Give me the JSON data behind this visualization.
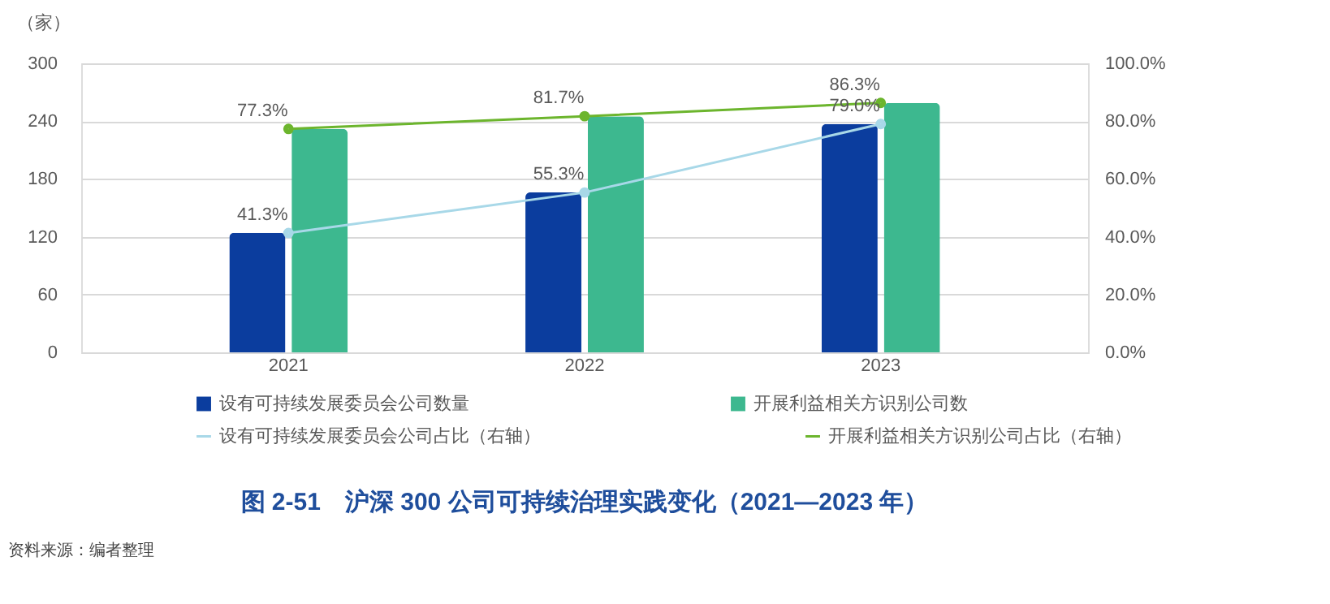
{
  "chart_data": {
    "type": "bar",
    "categories": [
      "2021",
      "2022",
      "2023"
    ],
    "ylabel": "（家）",
    "series": [
      {
        "name": "设有可持续发展委员会公司数量",
        "color": "#0b3d9e",
        "values": [
          124,
          166,
          237
        ]
      },
      {
        "name": "开展利益相关方识别公司数",
        "color": "#3db88f",
        "values": [
          232,
          245,
          259
        ]
      },
      {
        "name": "设有可持续发展委员会公司占比（右轴）",
        "type": "line",
        "axis": "y2",
        "color": "#a8d8e8",
        "values": [
          41.3,
          55.3,
          79.0
        ],
        "value_labels": [
          "41.3%",
          "55.3%",
          "79.0%"
        ]
      },
      {
        "name": "开展利益相关方识别公司占比（右轴）",
        "type": "line",
        "axis": "y2",
        "color": "#6cb52d",
        "values": [
          77.3,
          81.7,
          86.3
        ],
        "value_labels": [
          "77.3%",
          "81.7%",
          "86.3%"
        ]
      }
    ],
    "ylim": [
      0,
      300
    ],
    "yticks": [
      0,
      60,
      120,
      180,
      240,
      300
    ],
    "y2lim": [
      0,
      100
    ],
    "y2ticks": [
      {
        "value": 0,
        "label": "0.0%"
      },
      {
        "value": 20,
        "label": "20.0%"
      },
      {
        "value": 40,
        "label": "40.0%"
      },
      {
        "value": 60,
        "label": "60.0%"
      },
      {
        "value": 80,
        "label": "80.0%"
      },
      {
        "value": 100,
        "label": "100.0%"
      }
    ],
    "marker": "circle",
    "grid": "y",
    "legend": "bottom",
    "title": "图 2-51　沪深 300 公司可持续治理实践变化（2021—2023 年）",
    "annotations": [
      "资料来源：编者整理"
    ]
  }
}
